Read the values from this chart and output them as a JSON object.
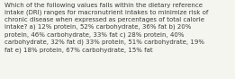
{
  "text": "Which of the following values falls within the dietary reference\nintake (DRI) ranges for macronutrient intakes to minimize risk of\nchronic disease when expressed as percentages of total calorie\nintake? a) 12% protein, 52% carbohydrate, 36% fat b) 20%\nprotein, 46% carbohydrate, 33% fat c) 28% protein, 40%\ncarbohydrate, 32% fat d) 33% protein, 51% carbohydrate, 19%\nfat e) 18% protein, 67% carbohydrate, 15% fat",
  "background_color": "#f5f5f0",
  "text_color": "#3a3a3a",
  "font_size": 5.05,
  "linespacing": 1.38
}
